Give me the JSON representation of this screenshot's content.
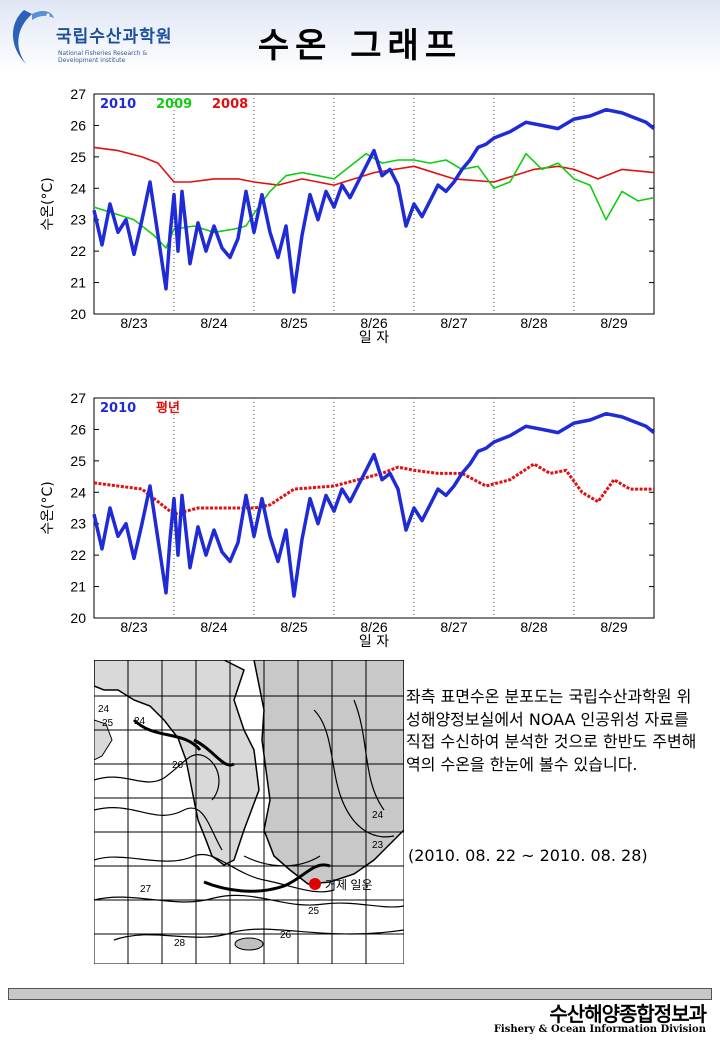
{
  "header": {
    "logo_title": "국립수산과학원",
    "logo_sub": "National Fisheries Research & Development Institute",
    "title": "수온 그래프"
  },
  "chart_data": [
    {
      "type": "line",
      "ylabel": "수온(°C)",
      "xlabel": "일 자",
      "ylim": [
        20,
        27
      ],
      "xlim": [
        0,
        7
      ],
      "yticks": [
        20,
        21,
        22,
        23,
        24,
        25,
        26,
        27
      ],
      "xticks": [
        "8/23",
        "8/24",
        "8/25",
        "8/26",
        "8/27",
        "8/28",
        "8/29"
      ],
      "grid": "vertical dotted",
      "legend_position": "top-left",
      "series": [
        {
          "name": "2010",
          "color": "#1f2bd6",
          "x": [
            0,
            0.1,
            0.2,
            0.3,
            0.4,
            0.5,
            0.6,
            0.7,
            0.8,
            0.9,
            0.95,
            1.0,
            1.05,
            1.1,
            1.2,
            1.3,
            1.4,
            1.5,
            1.6,
            1.7,
            1.8,
            1.9,
            2.0,
            2.1,
            2.2,
            2.3,
            2.4,
            2.5,
            2.6,
            2.7,
            2.8,
            2.9,
            3.0,
            3.1,
            3.2,
            3.3,
            3.4,
            3.5,
            3.6,
            3.7,
            3.8,
            3.9,
            4.0,
            4.1,
            4.2,
            4.3,
            4.4,
            4.5,
            4.6,
            4.7,
            4.8,
            4.9,
            5.0,
            5.2,
            5.4,
            5.6,
            5.8,
            6.0,
            6.2,
            6.4,
            6.6,
            6.8,
            6.9,
            7.0
          ],
          "values": [
            23.3,
            22.2,
            23.5,
            22.6,
            23.0,
            21.9,
            23.0,
            24.2,
            22.5,
            20.8,
            22.5,
            23.8,
            22.0,
            23.9,
            21.6,
            22.9,
            22.0,
            22.8,
            22.1,
            21.8,
            22.4,
            23.9,
            22.6,
            23.8,
            22.6,
            21.8,
            22.8,
            20.7,
            22.5,
            23.8,
            23.0,
            23.9,
            23.4,
            24.1,
            23.7,
            24.2,
            24.7,
            25.2,
            24.4,
            24.6,
            24.1,
            22.8,
            23.5,
            23.1,
            23.6,
            24.1,
            23.9,
            24.2,
            24.6,
            24.9,
            25.3,
            25.4,
            25.6,
            25.8,
            26.1,
            26.0,
            25.9,
            26.2,
            26.3,
            26.5,
            26.4,
            26.2,
            26.1,
            25.9
          ]
        },
        {
          "name": "2009",
          "color": "#11cc11",
          "x": [
            0,
            0.25,
            0.5,
            0.75,
            0.9,
            1.0,
            1.25,
            1.5,
            1.75,
            1.9,
            2.0,
            2.2,
            2.4,
            2.6,
            2.8,
            3.0,
            3.2,
            3.4,
            3.6,
            3.8,
            4.0,
            4.2,
            4.4,
            4.6,
            4.8,
            5.0,
            5.2,
            5.4,
            5.6,
            5.8,
            6.0,
            6.2,
            6.4,
            6.6,
            6.8,
            7.0
          ],
          "values": [
            23.4,
            23.2,
            23.0,
            22.5,
            22.1,
            22.7,
            22.8,
            22.6,
            22.7,
            22.8,
            23.2,
            23.9,
            24.4,
            24.5,
            24.4,
            24.3,
            24.7,
            25.1,
            24.8,
            24.9,
            24.9,
            24.8,
            24.9,
            24.6,
            24.7,
            24.0,
            24.2,
            25.1,
            24.6,
            24.8,
            24.3,
            24.1,
            23.0,
            23.9,
            23.6,
            23.7
          ]
        },
        {
          "name": "2008",
          "color": "#e01010",
          "x": [
            0,
            0.3,
            0.6,
            0.8,
            1.0,
            1.2,
            1.5,
            1.8,
            2.0,
            2.3,
            2.6,
            3.0,
            3.5,
            4.0,
            4.5,
            5.0,
            5.5,
            5.8,
            6.0,
            6.3,
            6.6,
            7.0
          ],
          "values": [
            25.3,
            25.2,
            25.0,
            24.8,
            24.2,
            24.2,
            24.3,
            24.3,
            24.2,
            24.1,
            24.3,
            24.1,
            24.5,
            24.7,
            24.3,
            24.2,
            24.6,
            24.7,
            24.6,
            24.3,
            24.6,
            24.5
          ]
        }
      ]
    },
    {
      "type": "line",
      "ylabel": "수온(°C)",
      "xlabel": "일 자",
      "ylim": [
        20,
        27
      ],
      "xlim": [
        0,
        7
      ],
      "yticks": [
        20,
        21,
        22,
        23,
        24,
        25,
        26,
        27
      ],
      "xticks": [
        "8/23",
        "8/24",
        "8/25",
        "8/26",
        "8/27",
        "8/28",
        "8/29"
      ],
      "grid": "vertical dotted",
      "legend_position": "top-left",
      "series": [
        {
          "name": "2010",
          "color": "#1f2bd6",
          "x": [
            0,
            0.1,
            0.2,
            0.3,
            0.4,
            0.5,
            0.6,
            0.7,
            0.8,
            0.9,
            0.95,
            1.0,
            1.05,
            1.1,
            1.2,
            1.3,
            1.4,
            1.5,
            1.6,
            1.7,
            1.8,
            1.9,
            2.0,
            2.1,
            2.2,
            2.3,
            2.4,
            2.5,
            2.6,
            2.7,
            2.8,
            2.9,
            3.0,
            3.1,
            3.2,
            3.3,
            3.4,
            3.5,
            3.6,
            3.7,
            3.8,
            3.9,
            4.0,
            4.1,
            4.2,
            4.3,
            4.4,
            4.5,
            4.6,
            4.7,
            4.8,
            4.9,
            5.0,
            5.2,
            5.4,
            5.6,
            5.8,
            6.0,
            6.2,
            6.4,
            6.6,
            6.8,
            6.9,
            7.0
          ],
          "values": [
            23.3,
            22.2,
            23.5,
            22.6,
            23.0,
            21.9,
            23.0,
            24.2,
            22.5,
            20.8,
            22.5,
            23.8,
            22.0,
            23.9,
            21.6,
            22.9,
            22.0,
            22.8,
            22.1,
            21.8,
            22.4,
            23.9,
            22.6,
            23.8,
            22.6,
            21.8,
            22.8,
            20.7,
            22.5,
            23.8,
            23.0,
            23.9,
            23.4,
            24.1,
            23.7,
            24.2,
            24.7,
            25.2,
            24.4,
            24.6,
            24.1,
            22.8,
            23.5,
            23.1,
            23.6,
            24.1,
            23.9,
            24.2,
            24.6,
            24.9,
            25.3,
            25.4,
            25.6,
            25.8,
            26.1,
            26.0,
            25.9,
            26.2,
            26.3,
            26.5,
            26.4,
            26.2,
            26.1,
            25.9
          ]
        },
        {
          "name": "평년",
          "color": "#e01010",
          "x": [
            0,
            0.3,
            0.6,
            0.8,
            1.0,
            1.3,
            1.6,
            2.0,
            2.2,
            2.5,
            3.0,
            3.3,
            3.6,
            3.8,
            4.0,
            4.3,
            4.6,
            4.9,
            5.2,
            5.5,
            5.7,
            5.9,
            6.1,
            6.3,
            6.5,
            6.7,
            7.0
          ],
          "values": [
            24.3,
            24.2,
            24.1,
            23.7,
            23.3,
            23.5,
            23.5,
            23.5,
            23.6,
            24.1,
            24.2,
            24.4,
            24.6,
            24.8,
            24.7,
            24.6,
            24.6,
            24.2,
            24.4,
            24.9,
            24.6,
            24.7,
            24.0,
            23.7,
            24.4,
            24.1,
            24.1
          ]
        }
      ]
    }
  ],
  "map": {
    "contour_labels": [
      "24",
      "25",
      "24",
      "26",
      "24",
      "23",
      "27",
      "25",
      "26",
      "28"
    ],
    "marker_label": "거제 일운",
    "marker_color": "#e00000"
  },
  "description": "좌측 표면수온 분포도는 국립수산과학원 위성해양정보실에서 NOAA 인공위성 자료를 직접 수신하여 분석한 것으로 한반도 주변해역의 수온을 한눈에 볼수 있습니다.",
  "period": "(2010. 08. 22 ~ 2010. 08. 28)",
  "footer": {
    "title": "수산해양종합정보과",
    "subtitle": "Fishery & Ocean Information Division"
  }
}
